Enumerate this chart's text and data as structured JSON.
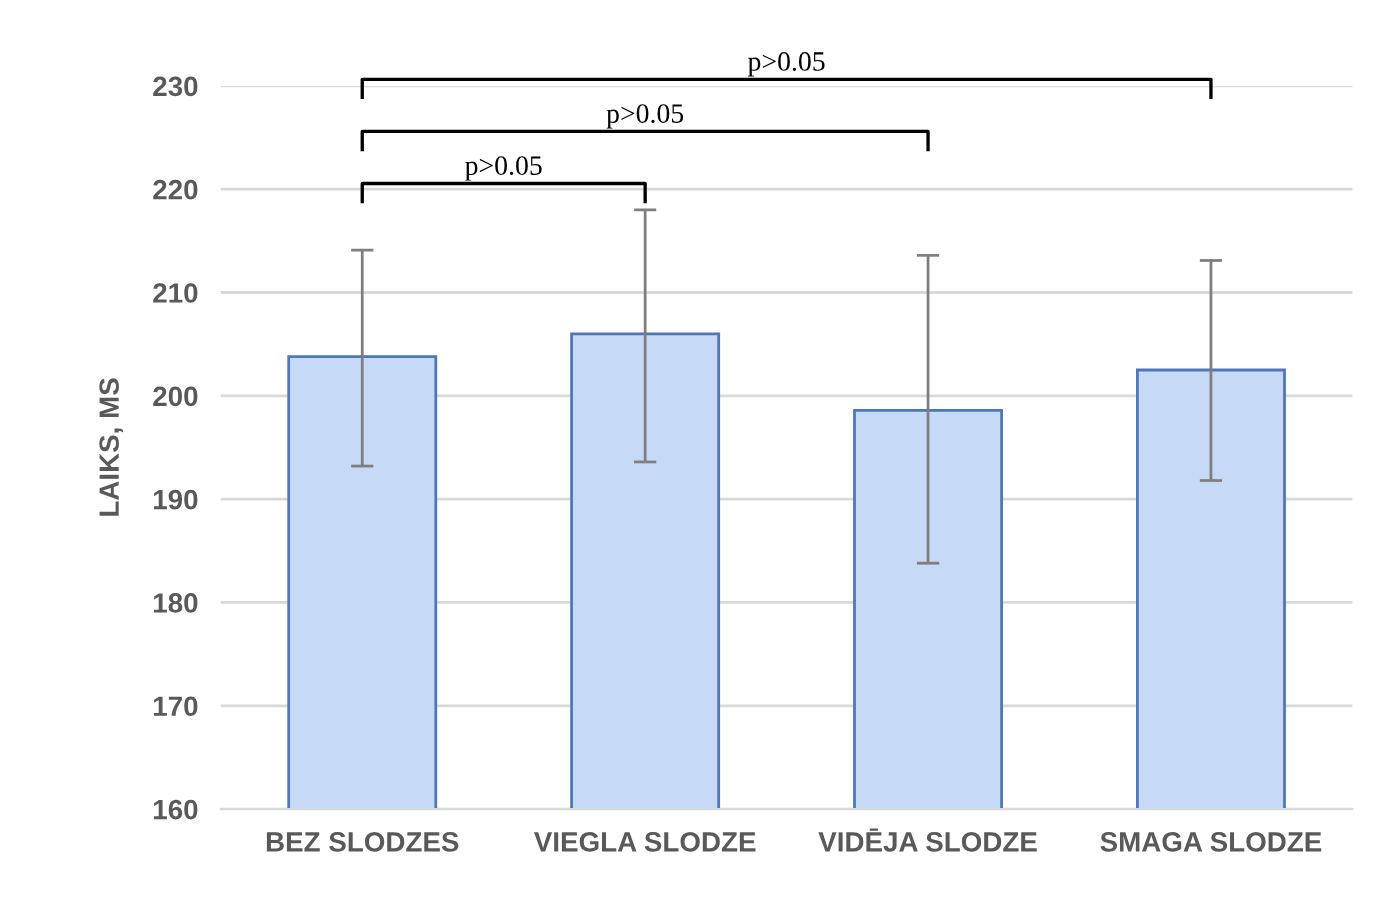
{
  "chart_data": {
    "type": "bar",
    "ylabel": "LAIKS, MS",
    "categories": [
      "BEZ SLODZES",
      "VIEGLA SLODZE",
      "VIDĒJA SLODZE",
      "SMAGA SLODZE"
    ],
    "values": [
      203.8,
      206.0,
      198.6,
      202.5
    ],
    "errors": [
      [
        193.2,
        214.1
      ],
      [
        193.6,
        218.0
      ],
      [
        183.8,
        213.6
      ],
      [
        191.8,
        213.1
      ]
    ],
    "color": "#c6d9f7",
    "ylim": [
      160,
      230
    ],
    "yticks": [
      160,
      170,
      180,
      190,
      200,
      210,
      220,
      230
    ],
    "grid": "y",
    "annotations": [
      "p>0.05",
      "p>0.05",
      "p>0.05"
    ]
  }
}
